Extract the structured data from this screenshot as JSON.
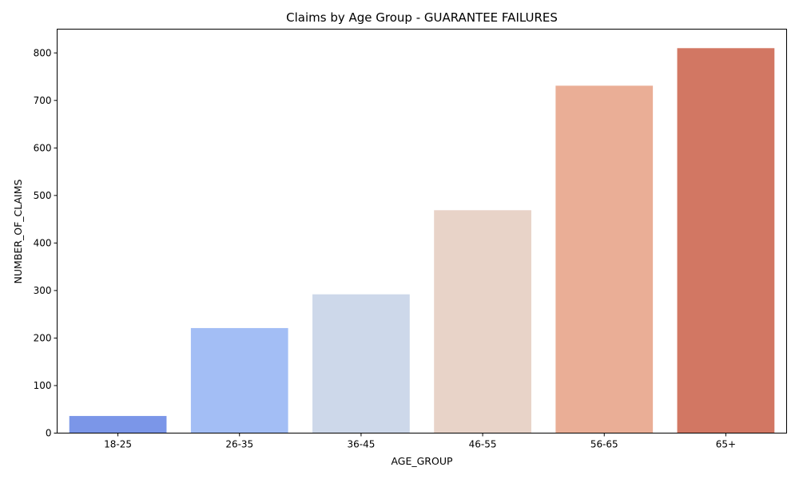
{
  "chart_data": {
    "type": "bar",
    "title": "Claims by Age Group - GUARANTEE FAILURES",
    "xlabel": "AGE_GROUP",
    "ylabel": "NUMBER_OF_CLAIMS",
    "categories": [
      "18-25",
      "26-35",
      "36-45",
      "46-55",
      "56-65",
      "65+"
    ],
    "values": [
      36,
      221,
      292,
      469,
      731,
      810
    ],
    "colors": [
      "#7b96e8",
      "#a3bef5",
      "#cdd8ea",
      "#e8d3c8",
      "#eaae96",
      "#d27763"
    ],
    "ylim": [
      0,
      850
    ],
    "yticks": [
      0,
      100,
      200,
      300,
      400,
      500,
      600,
      700,
      800
    ],
    "grid": false,
    "legend": "none"
  }
}
